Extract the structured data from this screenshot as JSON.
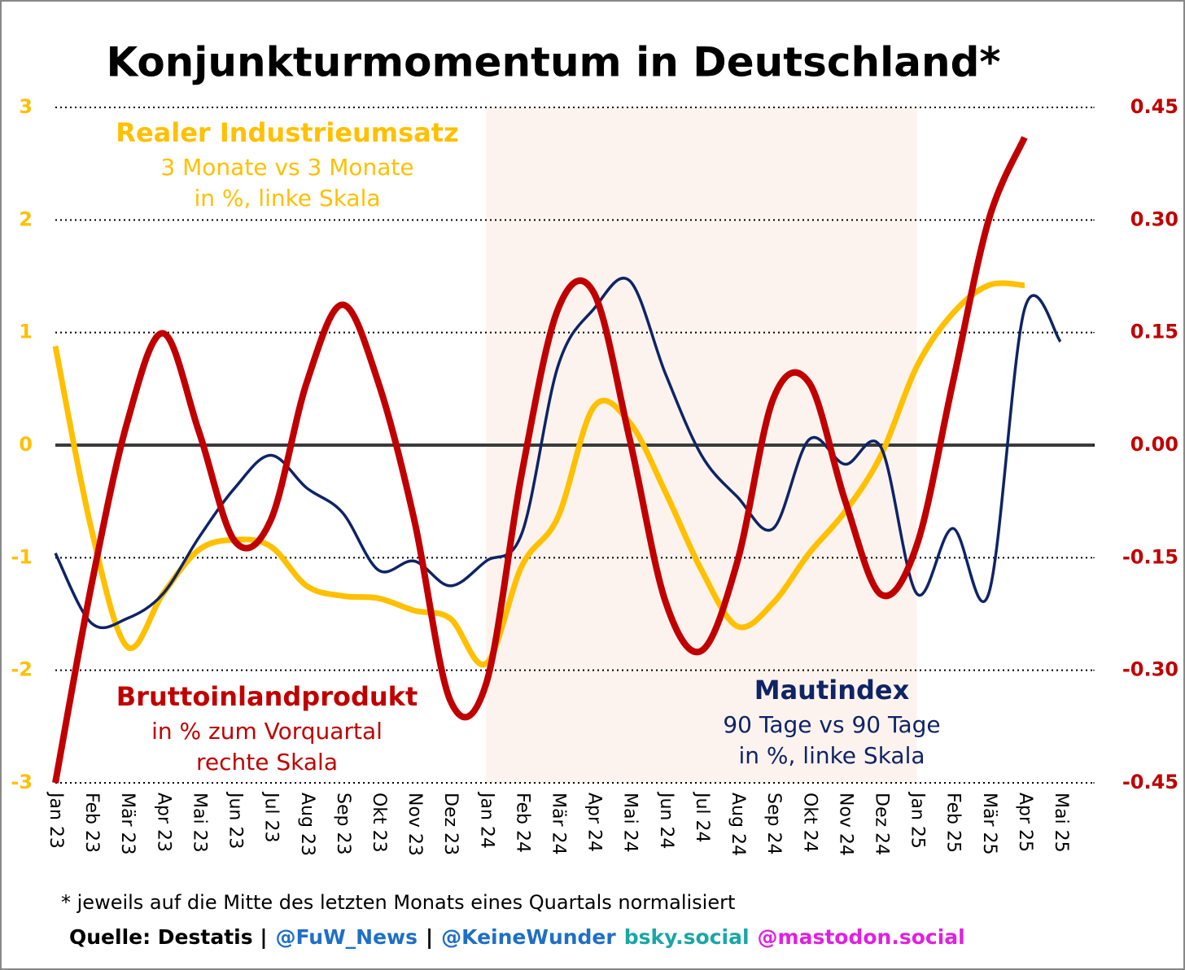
{
  "chart_data": {
    "type": "line",
    "title": "Konjunkturmomentum in Deutschland*",
    "categories": [
      "Jan 23",
      "Feb 23",
      "Mär 23",
      "Apr 23",
      "Mai 23",
      "Jun 23",
      "Jul 23",
      "Aug 23",
      "Sep 23",
      "Okt 23",
      "Nov 23",
      "Dez 23",
      "Jan 24",
      "Feb 24",
      "Mär 24",
      "Apr 24",
      "Mai 24",
      "Jun 24",
      "Jul 24",
      "Aug 24",
      "Sep 24",
      "Okt 24",
      "Nov 24",
      "Dez 24",
      "Jan 25",
      "Feb 25",
      "Mär 25",
      "Apr 25",
      "Mai 25"
    ],
    "series": [
      {
        "name": "Mautindex",
        "color": "#0f2466",
        "values": [
          -0.96,
          -1.58,
          -1.54,
          -1.32,
          -0.82,
          -0.38,
          -0.09,
          -0.38,
          -0.6,
          -1.11,
          -1.03,
          -1.25,
          -1.03,
          -0.78,
          0.7,
          1.21,
          1.46,
          0.63,
          -0.09,
          -0.46,
          -0.74,
          0.05,
          -0.17,
          -0.02,
          -1.32,
          -0.74,
          -1.32,
          1.21,
          0.92
        ]
      },
      {
        "name": "Realer Industrieumsatz",
        "color": "#ffc000",
        "values": [
          0.88,
          -0.74,
          -1.79,
          -1.32,
          -0.93,
          -0.84,
          -0.9,
          -1.25,
          -1.34,
          -1.36,
          -1.47,
          -1.54,
          -1.94,
          -1.07,
          -0.64,
          0.34,
          0.2,
          -0.42,
          -1.11,
          -1.61,
          -1.4,
          -0.96,
          -0.59,
          -0.09,
          0.7,
          1.17,
          1.42,
          1.42,
          null
        ]
      },
      {
        "name": "Bruttoinlandprodukt",
        "color": "#c00000",
        "axis": "y2",
        "values": [
          -0.45,
          -0.188,
          0.03,
          0.149,
          0.018,
          -0.128,
          -0.1,
          0.083,
          0.187,
          0.083,
          -0.1,
          -0.34,
          -0.318,
          -0.036,
          0.181,
          0.203,
          0.008,
          -0.209,
          -0.274,
          -0.155,
          0.062,
          0.083,
          -0.074,
          -0.199,
          -0.133,
          0.083,
          0.3,
          0.41,
          null
        ]
      }
    ],
    "ylim": [
      -3,
      3
    ],
    "yticks": [
      -3,
      -2,
      -1,
      0,
      1,
      2,
      3
    ],
    "y2lim": [
      -0.45,
      0.45
    ],
    "y2ticks": [
      -0.45,
      {
        "value": -0.3,
        "label": "-0.30"
      },
      -0.15,
      {
        "value": 0,
        "label": "0.00"
      },
      0.15,
      {
        "value": 0.3,
        "label": "0.30"
      },
      0.45
    ],
    "grid": true,
    "annotations": [
      {
        "title": "Realer Industrieumsatz",
        "lines": [
          "3 Monate vs 3 Monate",
          "in %, linke Skala"
        ],
        "color": "#ffc000"
      },
      {
        "title": "Bruttoinlandprodukt",
        "lines": [
          "in % zum Vorquartal",
          "rechte Skala"
        ],
        "color": "#c00000"
      },
      {
        "title": "Mautindex",
        "lines": [
          "90 Tage vs 90 Tage",
          "in %, linke Skala"
        ],
        "color": "#0f2466"
      }
    ],
    "footnote": "* jeweils auf die Mitte des letzten Monats eines Quartals normalisiert",
    "source": [
      "Quelle: Destatis |",
      "@FuW_News",
      "|",
      "@KeineWunder",
      "bsky.social",
      "@mastodon.social"
    ]
  }
}
